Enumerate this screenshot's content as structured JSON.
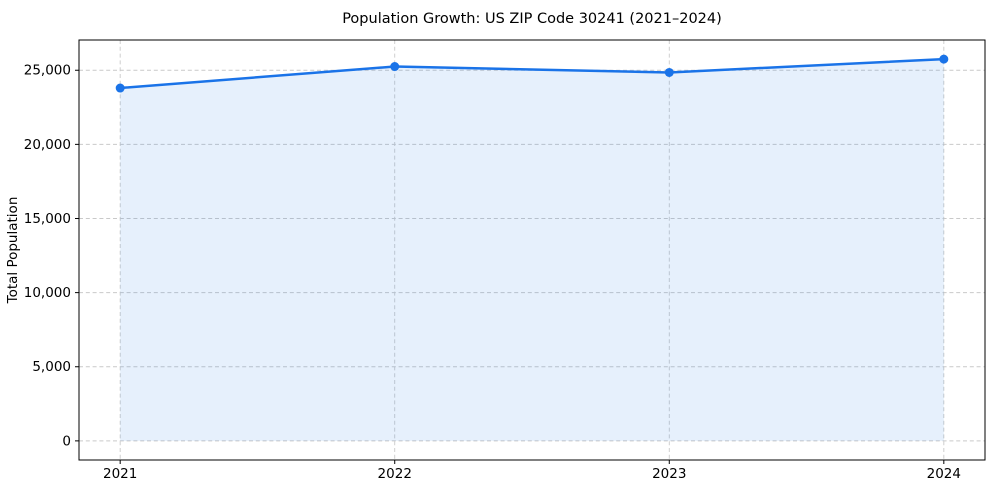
{
  "chart_data": {
    "type": "line",
    "title": "Population Growth: US ZIP Code 30241 (2021–2024)",
    "xlabel": "",
    "ylabel": "Total Population",
    "x": [
      2021,
      2022,
      2023,
      2024
    ],
    "x_tick_labels": [
      "2021",
      "2022",
      "2023",
      "2024"
    ],
    "series": [
      {
        "name": "Total Population",
        "values": [
          23800,
          25250,
          24850,
          25750
        ]
      }
    ],
    "y_ticks": [
      0,
      5000,
      10000,
      15000,
      20000,
      25000
    ],
    "y_tick_labels": [
      "0",
      "5,000",
      "10,000",
      "15,000",
      "20,000",
      "25,000"
    ],
    "xlim": [
      2020.85,
      2024.15
    ],
    "ylim": [
      -1290,
      27040
    ],
    "grid": true,
    "grid_style": "dashed",
    "grid_color": "#c9c9c9",
    "legend": "none",
    "line_color": "#1a73e8",
    "marker": "circle",
    "marker_color": "#1a73e8",
    "area_fill": true,
    "fill_color": "#1a73e8",
    "fill_opacity": 0.11,
    "background_color": "#ffffff",
    "spine_color": "#000000"
  }
}
